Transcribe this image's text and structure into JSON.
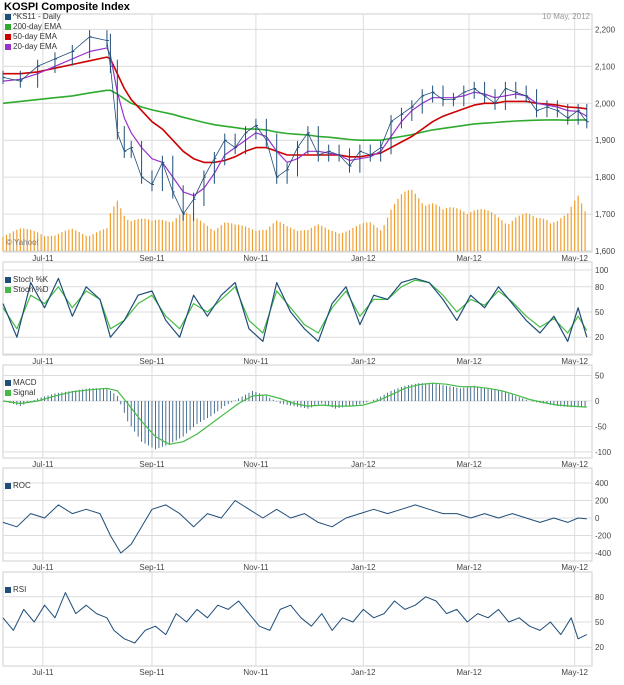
{
  "header": {
    "title": "KOSPI Composite Index",
    "date": "10 May, 2012",
    "watermark": "© Yahoo!"
  },
  "colors": {
    "price": "#1f4e79",
    "ema200": "#2eab2e",
    "ema50": "#cc0000",
    "ema20": "#9933cc",
    "volume": "#f0a030",
    "stoch_k": "#1f4e79",
    "stoch_d": "#44bb44",
    "macd": "#1f4e79",
    "signal": "#44bb44",
    "line": "#1f4e79",
    "grid": "#dcdcdc"
  },
  "chart_data": [
    {
      "type": "line",
      "panel": "price",
      "title": "KOSPI Composite Index",
      "x_labels": [
        "Jul-11",
        "Sep-11",
        "Nov-11",
        "Jan-12",
        "Mar-12",
        "May-12"
      ],
      "x_label_days": [
        23,
        86,
        146,
        208,
        269,
        330
      ],
      "ylim": [
        1600,
        2220
      ],
      "y_ticks": [
        1600,
        1700,
        1800,
        1900,
        2000,
        2100,
        2200
      ],
      "y_tick_labels": [
        "1,600",
        "1,700",
        "1,800",
        "1,900",
        "2,000",
        "2,100",
        "2,200"
      ],
      "legend": [
        "^KS11 - Daily",
        "200-day EMA",
        "50-day EMA",
        "20-day EMA"
      ],
      "x_day": [
        0,
        10,
        20,
        30,
        40,
        50,
        60,
        62,
        66,
        70,
        74,
        80,
        86,
        92,
        98,
        104,
        110,
        116,
        122,
        128,
        134,
        140,
        146,
        152,
        158,
        164,
        170,
        176,
        182,
        188,
        194,
        200,
        206,
        212,
        218,
        224,
        230,
        236,
        242,
        248,
        254,
        260,
        266,
        272,
        278,
        284,
        290,
        296,
        302,
        308,
        314,
        320,
        326,
        332,
        337
      ],
      "close": [
        2070,
        2060,
        2100,
        2120,
        2140,
        2180,
        2170,
        2100,
        1920,
        1870,
        1880,
        1800,
        1780,
        1840,
        1760,
        1700,
        1740,
        1800,
        1850,
        1900,
        1880,
        1920,
        1940,
        1900,
        1800,
        1820,
        1880,
        1920,
        1860,
        1870,
        1860,
        1830,
        1870,
        1860,
        1880,
        1950,
        1970,
        1990,
        2020,
        2030,
        2010,
        2010,
        2030,
        2040,
        2020,
        2000,
        2040,
        2030,
        2020,
        1980,
        1990,
        1980,
        1960,
        1980,
        1950
      ],
      "ema200": [
        2000,
        2005,
        2010,
        2015,
        2020,
        2028,
        2035,
        2035,
        2025,
        2012,
        2000,
        1990,
        1982,
        1976,
        1970,
        1962,
        1955,
        1948,
        1942,
        1938,
        1934,
        1930,
        1930,
        1928,
        1922,
        1918,
        1916,
        1914,
        1910,
        1908,
        1905,
        1902,
        1900,
        1900,
        1900,
        1905,
        1910,
        1915,
        1922,
        1928,
        1932,
        1936,
        1940,
        1944,
        1946,
        1948,
        1950,
        1952,
        1953,
        1954,
        1955,
        1955,
        1954,
        1955,
        1955
      ],
      "ema50": [
        2080,
        2080,
        2085,
        2095,
        2105,
        2115,
        2125,
        2120,
        2080,
        2040,
        2010,
        1980,
        1950,
        1930,
        1900,
        1870,
        1850,
        1840,
        1840,
        1845,
        1855,
        1870,
        1880,
        1880,
        1870,
        1860,
        1860,
        1860,
        1860,
        1860,
        1860,
        1855,
        1855,
        1860,
        1865,
        1880,
        1895,
        1910,
        1930,
        1950,
        1965,
        1975,
        1985,
        1995,
        2000,
        2000,
        2005,
        2005,
        2005,
        2000,
        1998,
        1995,
        1990,
        1988,
        1985
      ],
      "ema20": [
        2060,
        2065,
        2080,
        2100,
        2120,
        2140,
        2150,
        2130,
        2030,
        1960,
        1920,
        1880,
        1850,
        1840,
        1800,
        1760,
        1750,
        1770,
        1810,
        1860,
        1880,
        1900,
        1920,
        1910,
        1870,
        1840,
        1850,
        1870,
        1870,
        1865,
        1860,
        1845,
        1850,
        1855,
        1870,
        1910,
        1950,
        1980,
        2000,
        2015,
        2015,
        2015,
        2020,
        2030,
        2025,
        2015,
        2020,
        2025,
        2020,
        2000,
        1995,
        1990,
        1980,
        1978,
        1965
      ],
      "volume": [
        0.25,
        0.3,
        0.28,
        0.22,
        0.3,
        0.25,
        0.3,
        0.5,
        0.7,
        0.55,
        0.5,
        0.45,
        0.4,
        0.45,
        0.5,
        0.55,
        0.45,
        0.4,
        0.35,
        0.4,
        0.35,
        0.35,
        0.35,
        0.3,
        0.4,
        0.35,
        0.35,
        0.3,
        0.35,
        0.3,
        0.3,
        0.3,
        0.35,
        0.4,
        0.35,
        0.6,
        0.75,
        0.85,
        0.8,
        0.7,
        0.55,
        0.6,
        0.65,
        0.6,
        0.55,
        0.5,
        0.45,
        0.5,
        0.5,
        0.45,
        0.5,
        0.45,
        0.5,
        0.75,
        0.55
      ]
    },
    {
      "type": "line",
      "panel": "stochastic",
      "legend": [
        "Stoch %K",
        "Stoch %D"
      ],
      "ylim": [
        0,
        100
      ],
      "y_ticks": [
        0,
        20,
        50,
        80,
        100
      ],
      "y_tick_labels": [
        "",
        "20",
        "50",
        "80",
        "100"
      ],
      "x_day": [
        0,
        8,
        16,
        24,
        32,
        40,
        48,
        56,
        62,
        70,
        78,
        86,
        94,
        102,
        110,
        118,
        126,
        134,
        142,
        150,
        158,
        166,
        174,
        182,
        190,
        198,
        206,
        214,
        222,
        230,
        238,
        246,
        254,
        262,
        270,
        278,
        286,
        294,
        302,
        310,
        318,
        326,
        332,
        337
      ],
      "k": [
        60,
        20,
        85,
        55,
        90,
        45,
        80,
        65,
        20,
        40,
        70,
        75,
        40,
        20,
        70,
        45,
        70,
        85,
        30,
        15,
        85,
        50,
        30,
        15,
        60,
        80,
        35,
        70,
        65,
        85,
        90,
        85,
        65,
        40,
        70,
        55,
        80,
        60,
        40,
        25,
        45,
        15,
        55,
        20
      ],
      "d": [
        55,
        30,
        70,
        60,
        80,
        55,
        75,
        65,
        30,
        40,
        60,
        70,
        45,
        30,
        60,
        50,
        65,
        80,
        40,
        25,
        75,
        55,
        35,
        25,
        55,
        75,
        45,
        65,
        65,
        80,
        88,
        85,
        70,
        50,
        65,
        58,
        75,
        62,
        45,
        32,
        42,
        25,
        45,
        28
      ]
    },
    {
      "type": "bar",
      "panel": "macd",
      "legend": [
        "MACD",
        "Signal"
      ],
      "ylim": [
        -110,
        55
      ],
      "y_ticks": [
        -100,
        -50,
        0,
        50
      ],
      "y_tick_labels": [
        "-100",
        "-50",
        "0",
        "50"
      ],
      "x_day": [
        0,
        10,
        20,
        30,
        40,
        50,
        60,
        66,
        72,
        80,
        88,
        96,
        104,
        112,
        120,
        128,
        136,
        144,
        152,
        160,
        168,
        176,
        184,
        192,
        200,
        208,
        216,
        224,
        232,
        240,
        248,
        256,
        264,
        272,
        280,
        288,
        296,
        304,
        312,
        320,
        328,
        337
      ],
      "macd": [
        0,
        -10,
        5,
        15,
        20,
        25,
        25,
        10,
        -40,
        -80,
        -95,
        -85,
        -70,
        -45,
        -30,
        -10,
        5,
        20,
        10,
        -5,
        -10,
        -15,
        -5,
        -15,
        -10,
        -5,
        5,
        20,
        30,
        35,
        35,
        30,
        25,
        30,
        25,
        20,
        10,
        0,
        -5,
        -10,
        -12,
        -12
      ],
      "signal": [
        0,
        -5,
        0,
        10,
        18,
        22,
        25,
        20,
        -5,
        -40,
        -70,
        -85,
        -80,
        -65,
        -45,
        -25,
        -5,
        10,
        12,
        5,
        -5,
        -10,
        -8,
        -10,
        -10,
        -8,
        0,
        12,
        25,
        32,
        35,
        33,
        28,
        28,
        25,
        20,
        12,
        3,
        -3,
        -8,
        -10,
        -12
      ]
    },
    {
      "type": "line",
      "panel": "roc",
      "legend": [
        "ROC"
      ],
      "ylim": [
        -480,
        480
      ],
      "y_ticks": [
        -400,
        -200,
        0,
        200,
        400
      ],
      "y_tick_labels": [
        "-400",
        "-200",
        "0",
        "200",
        "400"
      ],
      "x_day": [
        0,
        8,
        16,
        24,
        32,
        40,
        48,
        56,
        62,
        68,
        74,
        80,
        86,
        94,
        102,
        110,
        118,
        126,
        134,
        142,
        150,
        158,
        166,
        174,
        182,
        190,
        198,
        206,
        214,
        222,
        230,
        238,
        246,
        254,
        262,
        270,
        278,
        286,
        294,
        302,
        310,
        318,
        326,
        332,
        337
      ],
      "values": [
        -50,
        -100,
        50,
        0,
        150,
        50,
        100,
        50,
        -200,
        -400,
        -300,
        -100,
        100,
        150,
        50,
        -100,
        50,
        0,
        200,
        100,
        0,
        100,
        0,
        50,
        -50,
        -100,
        0,
        50,
        100,
        50,
        100,
        150,
        100,
        50,
        50,
        0,
        50,
        0,
        50,
        0,
        -50,
        0,
        -50,
        0,
        -10
      ]
    },
    {
      "type": "line",
      "panel": "rsi",
      "legend": [
        "RSI"
      ],
      "ylim": [
        0,
        100
      ],
      "y_ticks": [
        20,
        50,
        80
      ],
      "y_tick_labels": [
        "20",
        "50",
        "80"
      ],
      "x_day": [
        0,
        6,
        12,
        18,
        24,
        30,
        36,
        42,
        48,
        54,
        60,
        64,
        70,
        76,
        82,
        88,
        94,
        100,
        106,
        112,
        118,
        124,
        130,
        136,
        142,
        148,
        154,
        160,
        166,
        172,
        178,
        184,
        190,
        196,
        202,
        208,
        214,
        220,
        226,
        232,
        238,
        244,
        250,
        256,
        262,
        268,
        274,
        280,
        286,
        292,
        298,
        304,
        310,
        316,
        322,
        328,
        332,
        337
      ],
      "values": [
        55,
        40,
        65,
        50,
        70,
        55,
        85,
        60,
        70,
        60,
        55,
        40,
        30,
        25,
        40,
        45,
        35,
        60,
        50,
        65,
        55,
        70,
        65,
        75,
        60,
        45,
        40,
        65,
        70,
        55,
        45,
        60,
        40,
        55,
        50,
        65,
        55,
        60,
        75,
        65,
        70,
        80,
        75,
        60,
        65,
        50,
        60,
        55,
        65,
        50,
        55,
        45,
        40,
        50,
        35,
        55,
        30,
        35
      ]
    }
  ]
}
